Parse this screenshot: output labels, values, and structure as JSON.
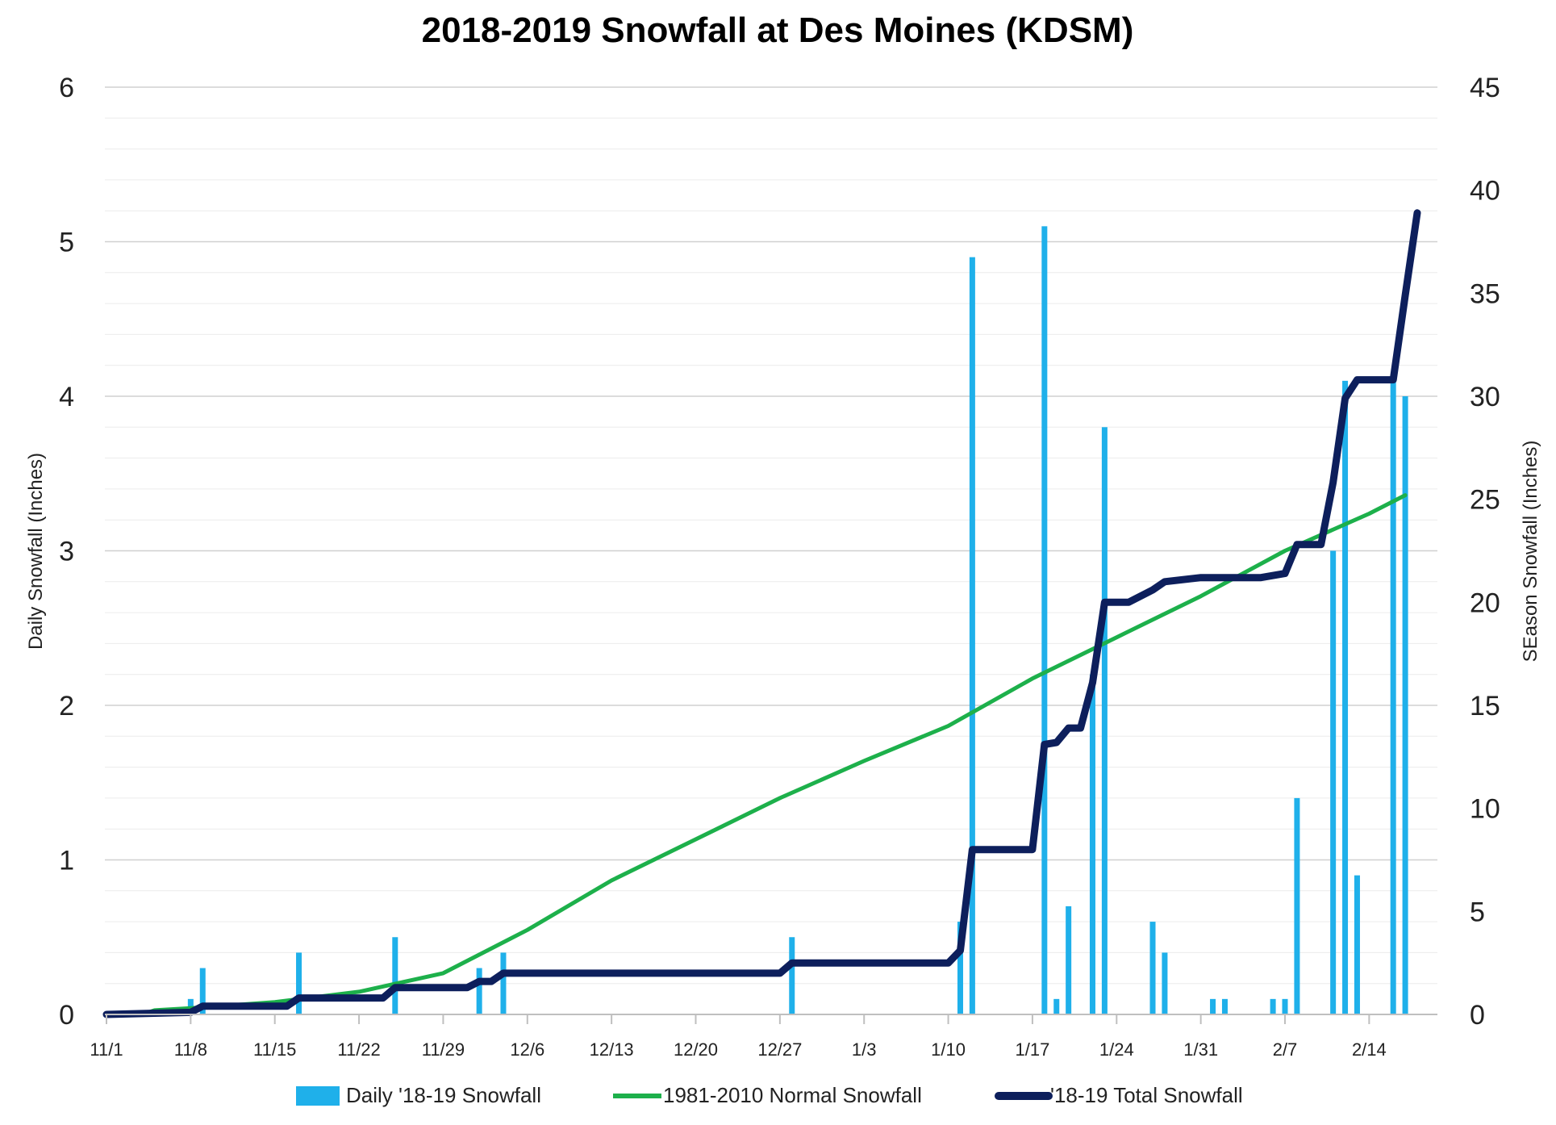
{
  "chart_data": {
    "type": "bar",
    "title": "2018-2019 Snowfall at Des Moines (KDSM)",
    "ylabel": "Daily Snowfall (Inches)",
    "y2label": "SEason Snowfall (Inches)",
    "ylim": [
      0,
      6
    ],
    "y2lim": [
      0,
      45
    ],
    "y_ticks": [
      "0",
      "1",
      "2",
      "3",
      "4",
      "5",
      "6"
    ],
    "y2_ticks": [
      "0",
      "5",
      "10",
      "15",
      "20",
      "25",
      "30",
      "35",
      "40",
      "45"
    ],
    "x_tick_labels": [
      "11/1",
      "11/8",
      "11/15",
      "11/22",
      "11/29",
      "12/6",
      "12/13",
      "12/20",
      "12/27",
      "1/3",
      "1/10",
      "1/17",
      "1/24",
      "1/31",
      "2/7",
      "2/14"
    ],
    "grid": true,
    "legend_position": "bottom",
    "colors": {
      "daily": "#1fb0ea",
      "normal": "#1db04b",
      "total": "#0d1f5c"
    },
    "series": [
      {
        "name": "Daily '18-19 Snowfall",
        "type": "bar",
        "axis": "left",
        "points": [
          [
            "11/8",
            0.1
          ],
          [
            "11/9",
            0.3
          ],
          [
            "11/17",
            0.4
          ],
          [
            "11/25",
            0.5
          ],
          [
            "12/2",
            0.3
          ],
          [
            "12/4",
            0.4
          ],
          [
            "12/28",
            0.5
          ],
          [
            "1/11",
            0.6
          ],
          [
            "1/12",
            4.9
          ],
          [
            "1/18",
            5.1
          ],
          [
            "1/19",
            0.1
          ],
          [
            "1/20",
            0.7
          ],
          [
            "1/22",
            2.2
          ],
          [
            "1/23",
            3.8
          ],
          [
            "1/27",
            0.6
          ],
          [
            "1/28",
            0.4
          ],
          [
            "2/1",
            0.1
          ],
          [
            "2/2",
            0.1
          ],
          [
            "2/6",
            0.1
          ],
          [
            "2/7",
            0.1
          ],
          [
            "2/8",
            1.4
          ],
          [
            "2/11",
            3.0
          ],
          [
            "2/12",
            4.1
          ],
          [
            "2/13",
            0.9
          ],
          [
            "2/16",
            4.1
          ],
          [
            "2/17",
            4.0
          ]
        ]
      },
      {
        "name": "1981-2010 Normal Snowfall",
        "type": "line",
        "axis": "right",
        "points": [
          [
            "11/1",
            0.0
          ],
          [
            "11/4",
            0.0
          ],
          [
            "11/5",
            0.2
          ],
          [
            "11/8",
            0.3
          ],
          [
            "11/15",
            0.6
          ],
          [
            "11/22",
            1.1
          ],
          [
            "11/29",
            2.0
          ],
          [
            "12/6",
            4.1
          ],
          [
            "12/13",
            6.5
          ],
          [
            "12/20",
            8.5
          ],
          [
            "12/27",
            10.5
          ],
          [
            "1/3",
            12.3
          ],
          [
            "1/10",
            14.0
          ],
          [
            "1/17",
            16.3
          ],
          [
            "1/24",
            18.3
          ],
          [
            "1/31",
            20.3
          ],
          [
            "2/7",
            22.5
          ],
          [
            "2/14",
            24.3
          ],
          [
            "2/17",
            25.2
          ]
        ]
      },
      {
        "name": "'18-19 Total Snowfall",
        "type": "line",
        "axis": "right",
        "points": [
          [
            "11/1",
            0.0
          ],
          [
            "11/8",
            0.1
          ],
          [
            "11/9",
            0.4
          ],
          [
            "11/16",
            0.4
          ],
          [
            "11/17",
            0.8
          ],
          [
            "11/24",
            0.8
          ],
          [
            "11/25",
            1.3
          ],
          [
            "12/1",
            1.3
          ],
          [
            "12/2",
            1.6
          ],
          [
            "12/3",
            1.6
          ],
          [
            "12/4",
            2.0
          ],
          [
            "12/27",
            2.0
          ],
          [
            "12/28",
            2.5
          ],
          [
            "1/10",
            2.5
          ],
          [
            "1/11",
            3.1
          ],
          [
            "1/12",
            8.0
          ],
          [
            "1/17",
            8.0
          ],
          [
            "1/18",
            13.1
          ],
          [
            "1/19",
            13.2
          ],
          [
            "1/20",
            13.9
          ],
          [
            "1/21",
            13.9
          ],
          [
            "1/22",
            16.1
          ],
          [
            "1/23",
            20.0
          ],
          [
            "1/25",
            20.0
          ],
          [
            "1/27",
            20.6
          ],
          [
            "1/28",
            21.0
          ],
          [
            "1/31",
            21.2
          ],
          [
            "2/5",
            21.2
          ],
          [
            "2/7",
            21.4
          ],
          [
            "2/8",
            22.8
          ],
          [
            "2/10",
            22.8
          ],
          [
            "2/11",
            25.8
          ],
          [
            "2/12",
            29.9
          ],
          [
            "2/13",
            30.8
          ],
          [
            "2/16",
            30.8
          ],
          [
            "2/17",
            34.9
          ],
          [
            "2/18",
            38.9
          ]
        ]
      }
    ]
  }
}
